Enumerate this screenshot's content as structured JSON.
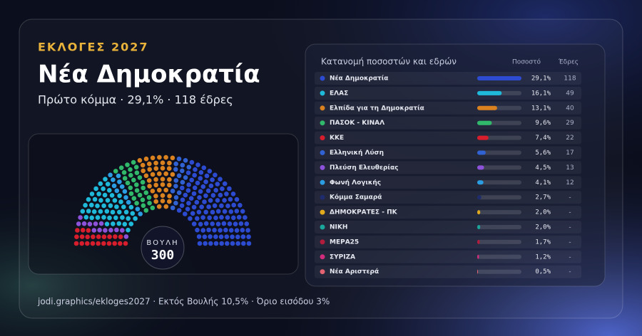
{
  "header": {
    "kicker": "ΕΚΛΟΓΕΣ 2027",
    "title": "Νέα Δημοκρατία",
    "subtitle": "Πρώτο κόμμα · 29,1% · 118 έδρες"
  },
  "chart_data": {
    "type": "parliament",
    "title": "Κατανομή ποσοστών και εδρών",
    "percent_header": "Ποσοστό",
    "seats_header": "Έδρες",
    "house_label": "ΒΟΥΛΗ",
    "total_seats": 300,
    "categories": [
      "Νέα Δημοκρατία",
      "ΕΛΑΣ",
      "Ελπίδα για τη Δημοκρατία",
      "ΠΑΣΟΚ - ΚΙΝΑΛ",
      "ΚΚΕ",
      "Ελληνική Λύση",
      "Πλεύση Ελευθερίας",
      "Φωνή Λογικής",
      "Κόμμα Σαμαρά",
      "ΔΗΜΟΚΡΑΤΕΣ - ΠΚ",
      "ΝΙΚΗ",
      "ΜΕΡΑ25",
      "ΣΥΡΙΖΑ",
      "Νέα Αριστερά"
    ],
    "colors": [
      "#2c4bd0",
      "#1fb9da",
      "#d9821f",
      "#31b96b",
      "#d81e2c",
      "#3162d4",
      "#8c52da",
      "#2b9de2",
      "#1e2c6e",
      "#e2ab1e",
      "#1aa69b",
      "#b21d3d",
      "#d22c7c",
      "#e36372"
    ],
    "values": [
      29.1,
      16.1,
      13.1,
      9.6,
      7.4,
      5.6,
      4.5,
      4.1,
      2.7,
      2.0,
      2.0,
      1.7,
      1.2,
      0.5
    ],
    "value_labels": [
      "29,1%",
      "16,1%",
      "13,1%",
      "9,6%",
      "7,4%",
      "5,6%",
      "4,5%",
      "4,1%",
      "2,7%",
      "2,0%",
      "2,0%",
      "1,7%",
      "1,2%",
      "0,5%"
    ],
    "seats": [
      118,
      49,
      40,
      29,
      22,
      17,
      13,
      12,
      null,
      null,
      null,
      null,
      null,
      null
    ],
    "no_seats_label": "-"
  },
  "footer": "jodi.graphics/ekloges2027 · Εκτός Βουλής 10,5% · Όριο εισόδου 3%"
}
